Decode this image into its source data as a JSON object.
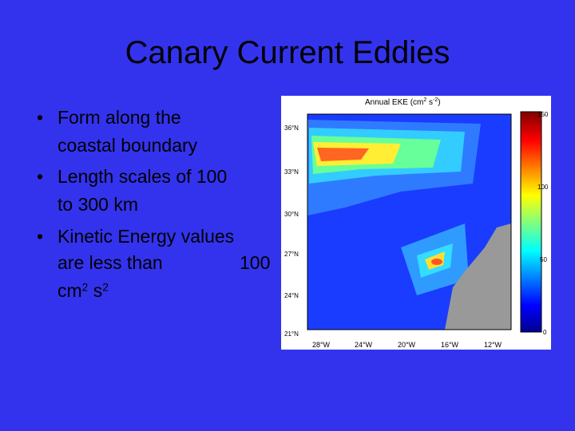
{
  "slide": {
    "title": "Canary Current Eddies",
    "bullets": [
      {
        "lines": [
          "Form along the",
          "coastal boundary"
        ]
      },
      {
        "lines": [
          "Length scales of 100",
          "to 300 km"
        ]
      },
      {
        "lines": [
          "Kinetic Energy values",
          "are less than"
        ],
        "number": "100",
        "unit_1": "cm",
        "exp_1": "2",
        "unit_2": "s",
        "exp_2": "2"
      }
    ],
    "figure": {
      "title_start": "Annual EKE (cm",
      "title_exp_1": "2",
      "title_mid": " s",
      "title_exp_2": "-2",
      "title_end": ")",
      "lat_labels": [
        "36°N",
        "33°N",
        "30°N",
        "27°N",
        "24°N",
        "21°N"
      ],
      "lon_labels": [
        "28°W",
        "24°W",
        "20°W",
        "16°W",
        "12°W"
      ],
      "colorbar_labels": [
        "150",
        "100",
        "50",
        "0"
      ]
    }
  }
}
